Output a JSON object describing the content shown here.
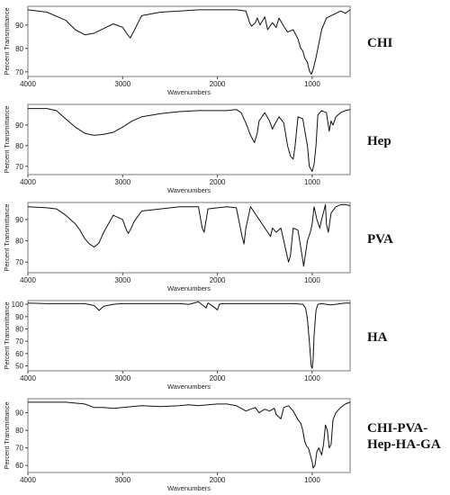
{
  "chart_data": [
    {
      "type": "line",
      "panel_label": "CHI",
      "xlabel": "Wavenumbers",
      "ylabel": "Percent Transmittance",
      "xlim": [
        4000,
        600
      ],
      "ylim": [
        68,
        98
      ],
      "xticks": [
        4000,
        3000,
        2000,
        1000
      ],
      "yticks": [
        70,
        80,
        90
      ],
      "x": [
        4000,
        3800,
        3600,
        3500,
        3400,
        3300,
        3200,
        3100,
        3000,
        2950,
        2920,
        2880,
        2800,
        2600,
        2400,
        2200,
        2000,
        1900,
        1800,
        1700,
        1660,
        1640,
        1600,
        1580,
        1550,
        1500,
        1470,
        1420,
        1380,
        1350,
        1300,
        1260,
        1200,
        1150,
        1120,
        1100,
        1080,
        1050,
        1030,
        1010,
        990,
        960,
        940,
        900,
        850,
        800,
        750,
        700,
        650,
        600
      ],
      "y": [
        96.5,
        95.5,
        92,
        88,
        85.8,
        86.5,
        88.5,
        90.5,
        89,
        86,
        84.5,
        87.5,
        94,
        95.5,
        96,
        96.5,
        96.5,
        96.5,
        96.5,
        96,
        91,
        89.5,
        91,
        93,
        90,
        93.5,
        88,
        91,
        89,
        93,
        89.5,
        87,
        88,
        84,
        80,
        79,
        76,
        74,
        70.5,
        69,
        71,
        76,
        80,
        88,
        93,
        94,
        95,
        96,
        95,
        96.5
      ]
    },
    {
      "type": "line",
      "panel_label": "Hep",
      "xlabel": "Wavenumbers",
      "ylabel": "Percent Transmittance",
      "xlim": [
        4000,
        600
      ],
      "ylim": [
        66,
        100
      ],
      "xticks": [
        4000,
        3000,
        2000,
        1000
      ],
      "yticks": [
        70,
        80,
        90
      ],
      "x": [
        4000,
        3800,
        3700,
        3600,
        3500,
        3400,
        3300,
        3200,
        3100,
        3000,
        2900,
        2800,
        2600,
        2400,
        2200,
        2000,
        1900,
        1800,
        1750,
        1700,
        1650,
        1610,
        1580,
        1560,
        1500,
        1450,
        1420,
        1400,
        1350,
        1300,
        1260,
        1230,
        1200,
        1180,
        1150,
        1100,
        1050,
        1030,
        1000,
        980,
        960,
        940,
        900,
        850,
        820,
        800,
        780,
        750,
        700,
        650,
        600
      ],
      "y": [
        98,
        98,
        97,
        93,
        89,
        86,
        85,
        85.5,
        86.5,
        89,
        92,
        94,
        95.5,
        96.5,
        97,
        97,
        97,
        97.5,
        96,
        91,
        85,
        81.5,
        86,
        92,
        96,
        92,
        88,
        90,
        94,
        91,
        80,
        75,
        73.5,
        80,
        94,
        93,
        80,
        70,
        67.5,
        71,
        80,
        95,
        97,
        96,
        87,
        92,
        90,
        94,
        96,
        97,
        97.5
      ]
    },
    {
      "type": "line",
      "panel_label": "PVA",
      "xlabel": "Wavenumbers",
      "ylabel": "Percent Transmittance",
      "xlim": [
        4000,
        600
      ],
      "ylim": [
        65,
        98
      ],
      "xticks": [
        4000,
        3000,
        2000,
        1000
      ],
      "yticks": [
        70,
        80,
        90
      ],
      "x": [
        4000,
        3800,
        3700,
        3600,
        3500,
        3450,
        3400,
        3350,
        3300,
        3250,
        3200,
        3100,
        3000,
        2960,
        2940,
        2910,
        2880,
        2800,
        2600,
        2400,
        2200,
        2160,
        2140,
        2100,
        2000,
        1900,
        1800,
        1740,
        1720,
        1700,
        1650,
        1560,
        1440,
        1420,
        1380,
        1330,
        1280,
        1250,
        1230,
        1200,
        1150,
        1100,
        1090,
        1050,
        1020,
        1000,
        980,
        950,
        920,
        900,
        860,
        850,
        830,
        800,
        750,
        700,
        650,
        600
      ],
      "y": [
        96,
        95.5,
        95,
        92,
        88,
        85,
        81,
        78.5,
        77,
        79,
        84,
        92,
        90,
        85,
        83.5,
        86,
        89,
        94,
        95,
        96,
        96,
        86,
        84,
        95,
        95.5,
        96,
        95.5,
        82,
        78.5,
        86,
        96,
        90,
        82,
        86,
        84,
        86,
        76,
        70,
        73,
        86,
        85,
        71,
        68,
        80,
        84,
        88,
        96,
        90,
        86,
        90,
        97,
        88,
        84,
        93,
        96,
        97,
        97,
        96.5
      ]
    },
    {
      "type": "line",
      "panel_label": "HA",
      "xlabel": "Wavenumbers",
      "ylabel": "Percent Transmittance",
      "xlim": [
        4000,
        600
      ],
      "ylim": [
        46,
        103
      ],
      "xticks": [
        4000,
        3000,
        2000,
        1000
      ],
      "yticks": [
        50,
        60,
        70,
        80,
        90,
        100
      ],
      "x": [
        4000,
        3800,
        3600,
        3400,
        3300,
        3250,
        3200,
        3100,
        3000,
        2800,
        2600,
        2400,
        2300,
        2200,
        2150,
        2120,
        2100,
        2050,
        2000,
        1980,
        1950,
        1900,
        1800,
        1600,
        1400,
        1200,
        1100,
        1070,
        1050,
        1030,
        1010,
        1000,
        990,
        980,
        960,
        940,
        900,
        850,
        800,
        750,
        700,
        650,
        600
      ],
      "y": [
        101,
        100.5,
        100.5,
        100.5,
        99,
        95,
        98.5,
        100,
        100.5,
        100.5,
        100.5,
        100.5,
        100,
        102,
        99,
        97,
        101,
        98.5,
        95.5,
        100,
        100.5,
        100.5,
        100.5,
        100.5,
        100.5,
        100.5,
        100,
        97,
        88,
        70,
        50,
        48,
        55,
        75,
        95,
        100,
        100.5,
        100,
        99.5,
        100,
        100.5,
        101,
        101
      ]
    },
    {
      "type": "line",
      "panel_label": "CHI-PVA-Hep-HA-GA",
      "xlabel": "Wavenumbers",
      "ylabel": "Percent Transmittance",
      "xlim": [
        4000,
        600
      ],
      "ylim": [
        56,
        98
      ],
      "xticks": [
        4000,
        3000,
        2000,
        1000
      ],
      "yticks": [
        60,
        70,
        80,
        90
      ],
      "x": [
        4000,
        3800,
        3600,
        3400,
        3300,
        3200,
        3100,
        3000,
        2900,
        2800,
        2600,
        2400,
        2300,
        2200,
        2100,
        2000,
        1900,
        1800,
        1700,
        1650,
        1600,
        1560,
        1500,
        1450,
        1400,
        1380,
        1330,
        1300,
        1250,
        1200,
        1150,
        1120,
        1100,
        1080,
        1060,
        1040,
        1020,
        1000,
        990,
        970,
        950,
        930,
        900,
        880,
        860,
        840,
        820,
        800,
        780,
        750,
        700,
        650,
        600
      ],
      "y": [
        96,
        96,
        96,
        95,
        93,
        93,
        92.5,
        93,
        93.5,
        94,
        93.5,
        94,
        94.5,
        94,
        94.5,
        95,
        95,
        94,
        91,
        92,
        93,
        90,
        92,
        91,
        92.5,
        89,
        86.5,
        93,
        94,
        91,
        86,
        84,
        80,
        74,
        71,
        70,
        66,
        62,
        58.5,
        60,
        68,
        70,
        66,
        72,
        83,
        80,
        70,
        72,
        86,
        90,
        93,
        95,
        96
      ]
    }
  ]
}
